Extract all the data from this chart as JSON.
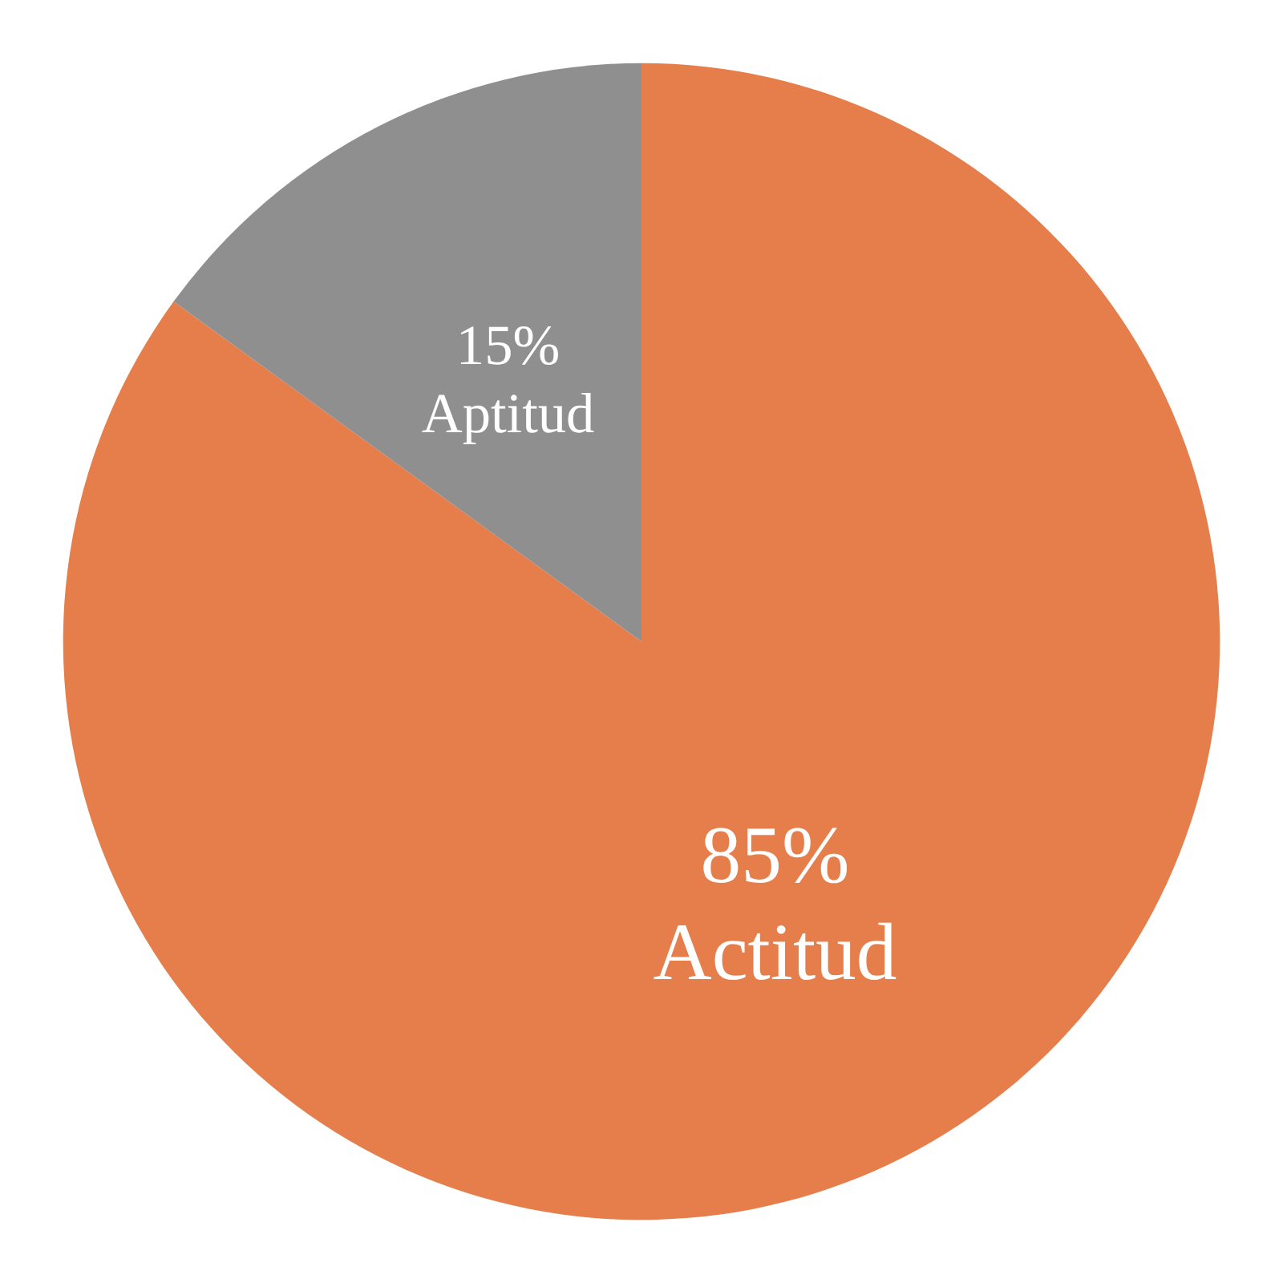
{
  "chart_data": {
    "type": "pie",
    "categories": [
      "Actitud",
      "Aptitud"
    ],
    "values": [
      85,
      15
    ],
    "colors": [
      "#e57e4b",
      "#8f8f8f"
    ],
    "value_labels": [
      "85%",
      "15%"
    ],
    "legend": false
  }
}
